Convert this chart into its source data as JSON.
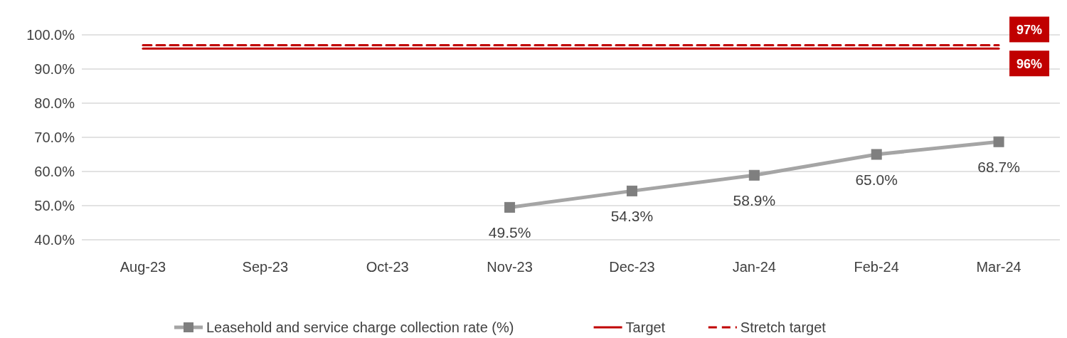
{
  "chart_data": {
    "type": "line",
    "categories": [
      "Aug-23",
      "Sep-23",
      "Oct-23",
      "Nov-23",
      "Dec-23",
      "Jan-24",
      "Feb-24",
      "Mar-24"
    ],
    "ylim": [
      40,
      100
    ],
    "yticks": [
      {
        "value": 40,
        "label": "40.0%"
      },
      {
        "value": 50,
        "label": "50.0%"
      },
      {
        "value": 60,
        "label": "60.0%"
      },
      {
        "value": 70,
        "label": "70.0%"
      },
      {
        "value": 80,
        "label": "80.0%"
      },
      {
        "value": 90,
        "label": "90.0%"
      },
      {
        "value": 100,
        "label": "100.0%"
      }
    ],
    "grid": "y",
    "legend": "bottom",
    "series": [
      {
        "name": "Leasehold and service charge collection rate (%)",
        "color": "#a5a5a5",
        "marker": "square",
        "line_style": "solid",
        "values": [
          null,
          null,
          null,
          49.5,
          54.3,
          58.9,
          65.0,
          68.7
        ],
        "value_labels": [
          null,
          null,
          null,
          "49.5%",
          "54.3%",
          "58.9%",
          "65.0%",
          "68.7%"
        ]
      },
      {
        "name": "Target",
        "color": "#c00000",
        "marker": "none",
        "line_style": "solid",
        "values": [
          96,
          96,
          96,
          96,
          96,
          96,
          96,
          96
        ],
        "value_labels": [
          null,
          null,
          null,
          null,
          null,
          null,
          null,
          "96%"
        ]
      },
      {
        "name": "Stretch target",
        "color": "#c00000",
        "marker": "none",
        "line_style": "dashed",
        "values": [
          97,
          97,
          97,
          97,
          97,
          97,
          97,
          97
        ],
        "value_labels": [
          null,
          null,
          null,
          null,
          null,
          null,
          null,
          "97%"
        ]
      }
    ]
  }
}
